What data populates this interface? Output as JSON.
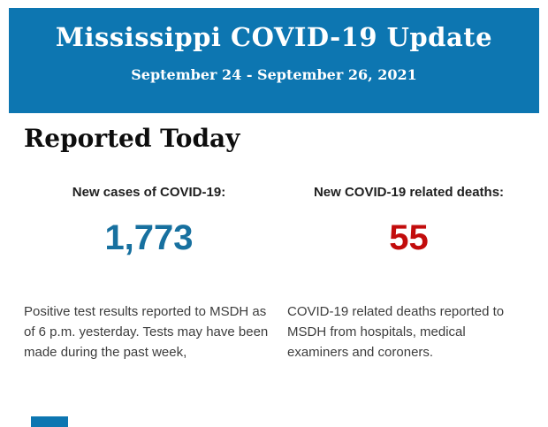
{
  "header": {
    "title": "Mississippi COVID-19 Update",
    "date_range": "September 24 - September 26, 2021",
    "background_color": "#0d76b1",
    "text_color": "#ffffff"
  },
  "section": {
    "heading": "Reported Today"
  },
  "stats": {
    "cases": {
      "label": "New cases of COVID-19:",
      "value": "1,773",
      "value_color": "#17709f",
      "description": "Positive test results reported to MSDH as of 6 p.m. yesterday. Tests may have been made during the past week,"
    },
    "deaths": {
      "label": "New COVID-19 related deaths:",
      "value": "55",
      "value_color": "#c20c0c",
      "description": "COVID-19 related deaths reported to MSDH from hospitals, medical examiners and coroners."
    }
  },
  "colors": {
    "heading_text": "#0d0d0d",
    "label_text": "#1f1f1f",
    "body_text": "#3d3d3d",
    "page_background": "#ffffff"
  }
}
